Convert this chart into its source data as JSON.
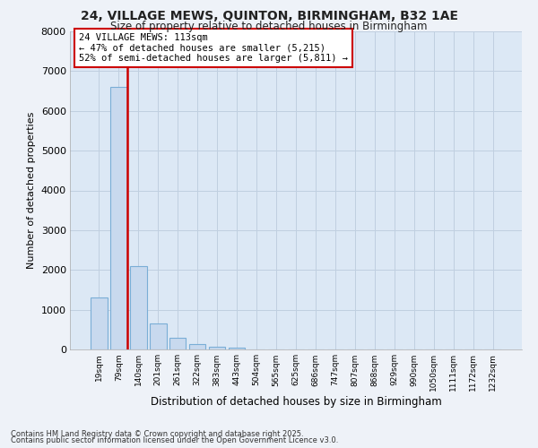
{
  "title1": "24, VILLAGE MEWS, QUINTON, BIRMINGHAM, B32 1AE",
  "title2": "Size of property relative to detached houses in Birmingham",
  "xlabel": "Distribution of detached houses by size in Birmingham",
  "ylabel": "Number of detached properties",
  "bins": [
    "19sqm",
    "79sqm",
    "140sqm",
    "201sqm",
    "261sqm",
    "322sqm",
    "383sqm",
    "443sqm",
    "504sqm",
    "565sqm",
    "625sqm",
    "686sqm",
    "747sqm",
    "807sqm",
    "868sqm",
    "929sqm",
    "990sqm",
    "1050sqm",
    "1111sqm",
    "1172sqm",
    "1232sqm"
  ],
  "values": [
    1300,
    6600,
    2100,
    650,
    300,
    130,
    70,
    50,
    10,
    5,
    3,
    2,
    1,
    1,
    1,
    0,
    0,
    0,
    0,
    0,
    0
  ],
  "bar_color": "#c8d9ee",
  "bar_edge_color": "#7aaed6",
  "vline_color": "#cc0000",
  "annotation_text": "24 VILLAGE MEWS: 113sqm\n← 47% of detached houses are smaller (5,215)\n52% of semi-detached houses are larger (5,811) →",
  "annotation_box_color": "#ffffff",
  "annotation_box_edge": "#cc0000",
  "ylim": [
    0,
    8000
  ],
  "yticks": [
    0,
    1000,
    2000,
    3000,
    4000,
    5000,
    6000,
    7000,
    8000
  ],
  "footer1": "Contains HM Land Registry data © Crown copyright and database right 2025.",
  "footer2": "Contains public sector information licensed under the Open Government Licence v3.0.",
  "bg_color": "#eef2f8",
  "plot_bg_color": "#dce8f5",
  "grid_color": "#c0cfe0"
}
